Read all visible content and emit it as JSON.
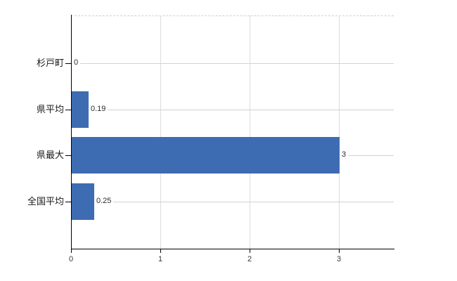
{
  "chart_data": {
    "type": "bar",
    "orientation": "horizontal",
    "title": "",
    "xlabel": "",
    "ylabel": "",
    "categories": [
      "杉戸町",
      "県平均",
      "県最大",
      "全国平均"
    ],
    "values": [
      0,
      0.19,
      3,
      0.25
    ],
    "value_labels": [
      "0",
      "0.19",
      "3",
      "0.25"
    ],
    "x_ticks": [
      0,
      1,
      2,
      3
    ],
    "x_tick_labels": [
      "0",
      "1",
      "2",
      "3"
    ],
    "xlim": [
      0,
      3.61
    ],
    "legend": "none",
    "grid": "vertical gridlines at x ticks, per-row horizontal leader lines, dashed top border",
    "colors": {
      "bar": "#3e6cb2",
      "row_line": "#ccd6cc",
      "gridline": "#dcdcdc",
      "top_border": "#d4cec9",
      "axis": "#000000",
      "value_label": "#2b2b2b",
      "tick_label": "#3a3a3a",
      "category_label": "#1a1a1a",
      "background": "#ffffff"
    }
  }
}
